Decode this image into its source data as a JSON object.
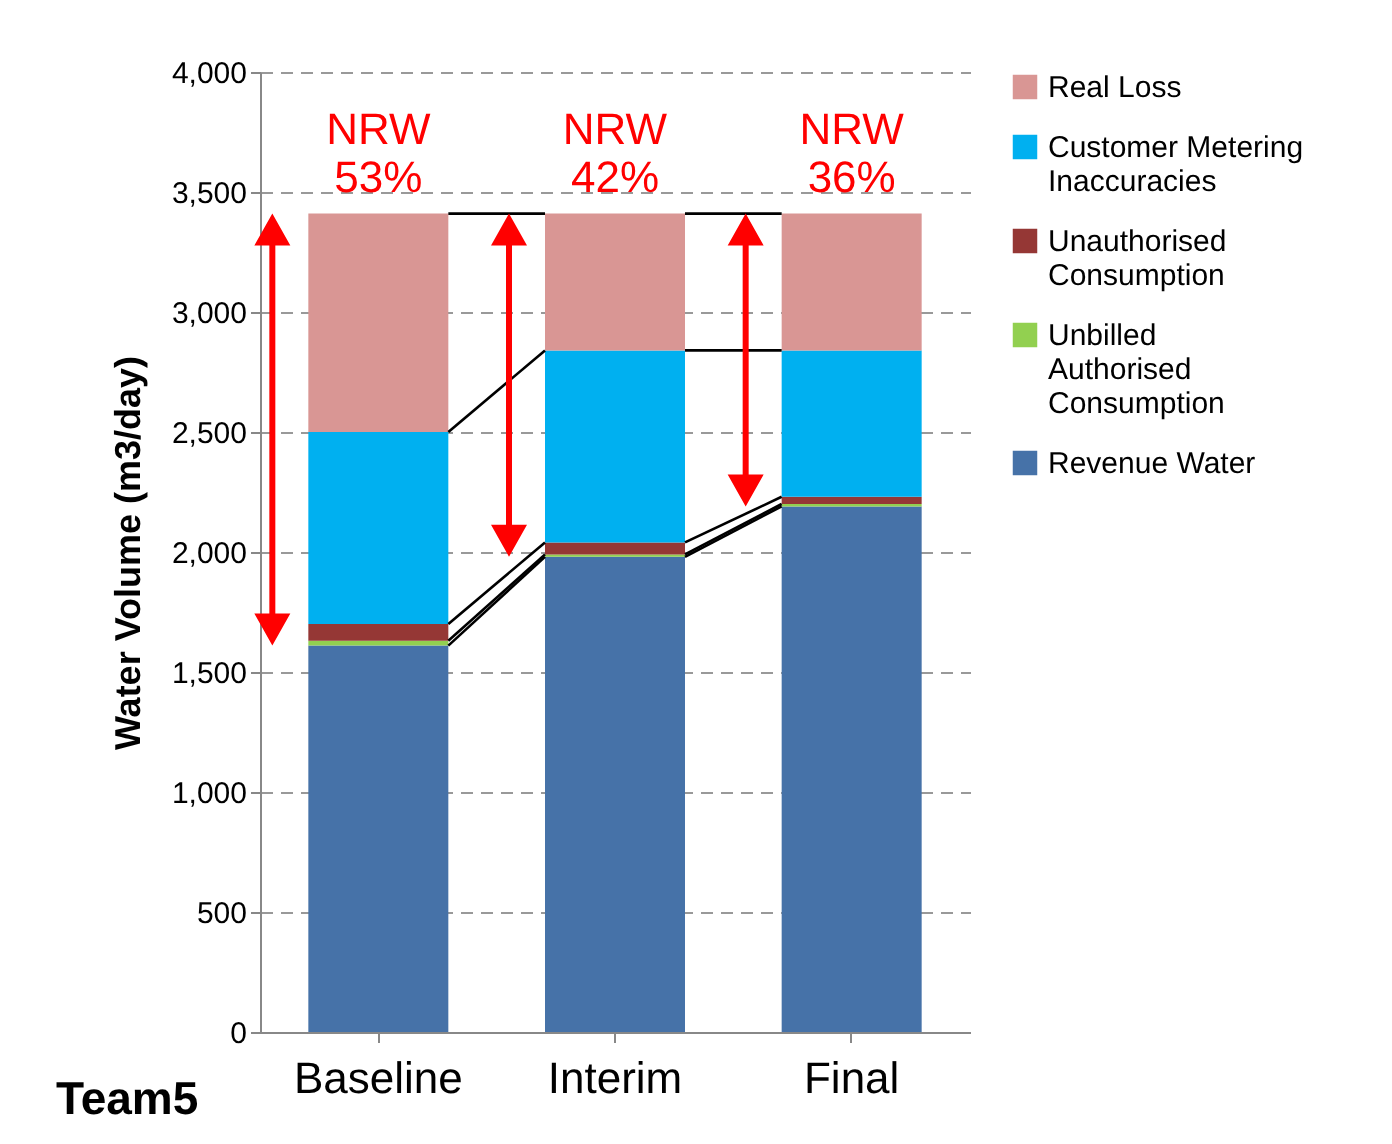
{
  "chart_data": {
    "type": "bar",
    "stacked": true,
    "ylabel": "Water Volume (m3/day)",
    "categories": [
      "Baseline",
      "Interim",
      "Final"
    ],
    "series": [
      {
        "name": "Revenue Water",
        "color": "#4672a8",
        "values": [
          1610,
          1980,
          2190
        ]
      },
      {
        "name": "Unbilled Authorised Consumption",
        "color": "#92d050",
        "values": [
          20,
          10,
          10
        ]
      },
      {
        "name": "Unauthorised Consumption",
        "color": "#953735",
        "values": [
          70,
          50,
          30
        ]
      },
      {
        "name": "Customer Metering Inaccuracies",
        "color": "#00b0f0",
        "values": [
          800,
          800,
          610
        ]
      },
      {
        "name": "Real Loss",
        "color": "#d99694",
        "values": [
          910,
          570,
          570
        ]
      }
    ],
    "ylim": [
      0,
      4000
    ],
    "yticks": [
      0,
      500,
      {
        "value": 1000,
        "label": "1,000"
      },
      {
        "value": 1500,
        "label": "1,500"
      },
      {
        "value": 2000,
        "label": "2,000"
      },
      {
        "value": 2500,
        "label": "2,500"
      },
      {
        "value": 3000,
        "label": "3,000"
      },
      {
        "value": 3500,
        "label": "3,500"
      },
      {
        "value": 4000,
        "label": "4,000"
      }
    ],
    "grid": "y",
    "legend": "right",
    "annotations": [
      "Team5",
      {
        "text": "NRW 53%",
        "x": "Baseline",
        "y": 3410
      },
      {
        "text": "NRW 42%",
        "x": "Interim",
        "y": 3410
      },
      {
        "text": "NRW 36%",
        "x": "Final",
        "y": 3410
      }
    ]
  }
}
